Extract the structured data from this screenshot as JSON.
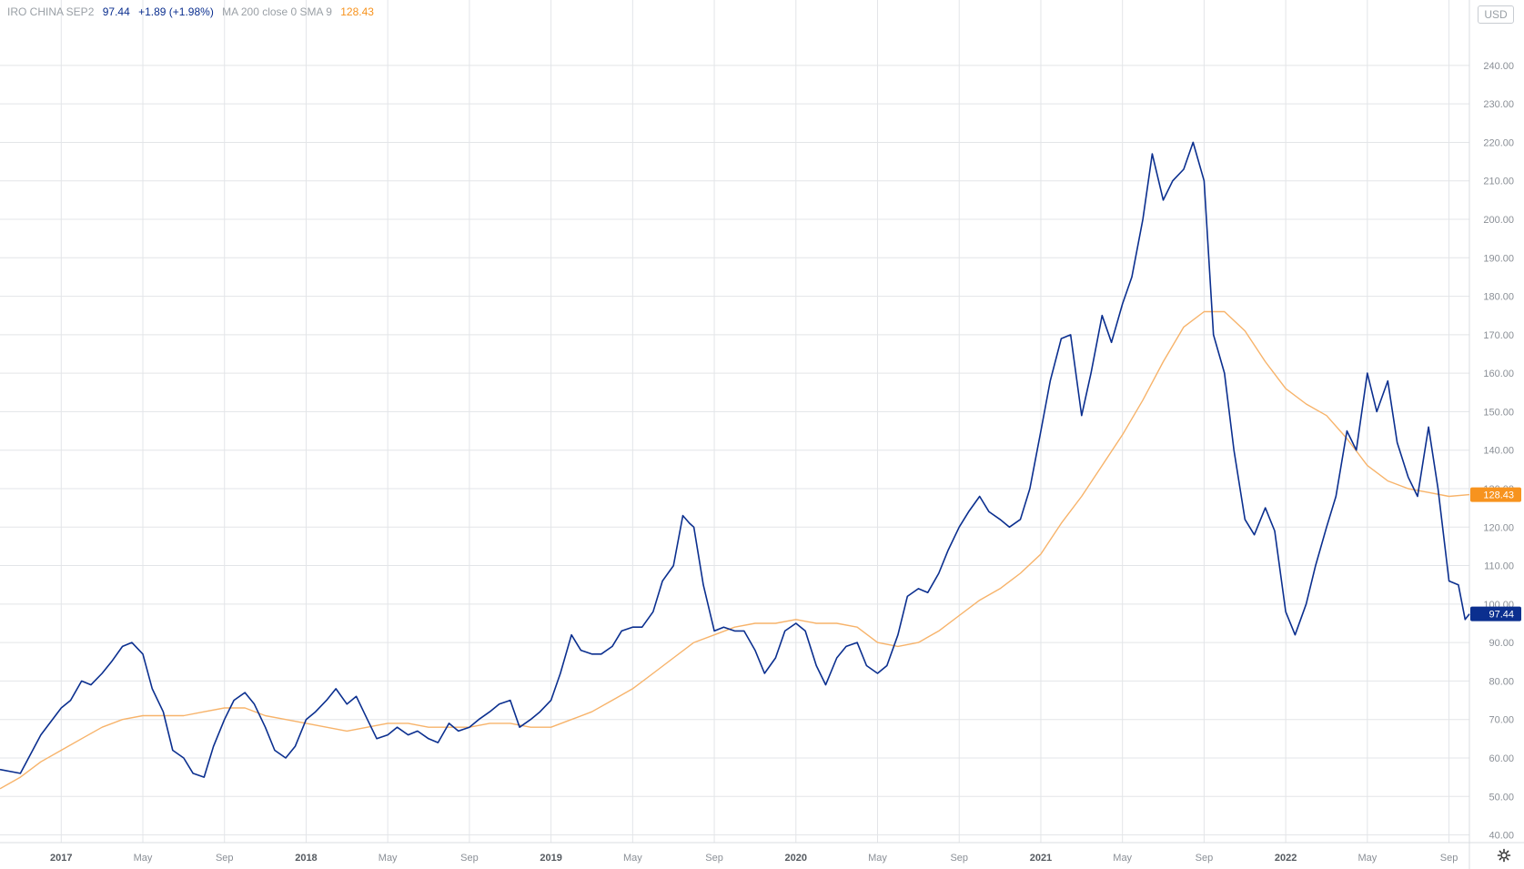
{
  "legend": {
    "symbol_name": "IRO CHINA SEP2",
    "last_value": "97.44",
    "change": "+1.89 (+1.98%)",
    "indicator_name": "MA 200 close 0 SMA 9",
    "indicator_value": "128.43"
  },
  "currency_button": "USD",
  "colors": {
    "price_line": "#0b2f8f",
    "ma_line": "#f7b36a",
    "price_badge": "#0b2f8f",
    "ma_badge": "#f7931e",
    "grid": "#e3e5e8"
  },
  "icons": {
    "settings": "gear-icon"
  },
  "chart_data": {
    "type": "line",
    "x_unit": "date (year-month)",
    "xlim": [
      "2016-10",
      "2022-10"
    ],
    "ylim": [
      38,
      257
    ],
    "grid": true,
    "y_ticks": [
      "40.00",
      "50.00",
      "60.00",
      "70.00",
      "80.00",
      "90.00",
      "100.00",
      "110.00",
      "120.00",
      "130.00",
      "140.00",
      "150.00",
      "160.00",
      "170.00",
      "180.00",
      "190.00",
      "200.00",
      "210.00",
      "220.00",
      "230.00",
      "240.00"
    ],
    "x_ticks": [
      {
        "date": "2017-01",
        "label": "2017"
      },
      {
        "date": "2017-05",
        "label": "May"
      },
      {
        "date": "2017-09",
        "label": "Sep"
      },
      {
        "date": "2018-01",
        "label": "2018"
      },
      {
        "date": "2018-05",
        "label": "May"
      },
      {
        "date": "2018-09",
        "label": "Sep"
      },
      {
        "date": "2019-01",
        "label": "2019"
      },
      {
        "date": "2019-05",
        "label": "May"
      },
      {
        "date": "2019-09",
        "label": "Sep"
      },
      {
        "date": "2020-01",
        "label": "2020"
      },
      {
        "date": "2020-05",
        "label": "May"
      },
      {
        "date": "2020-09",
        "label": "Sep"
      },
      {
        "date": "2021-01",
        "label": "2021"
      },
      {
        "date": "2021-05",
        "label": "May"
      },
      {
        "date": "2021-09",
        "label": "Sep"
      },
      {
        "date": "2022-01",
        "label": "2022"
      },
      {
        "date": "2022-05",
        "label": "May"
      },
      {
        "date": "2022-09",
        "label": "Sep"
      }
    ],
    "series": [
      {
        "name": "IRO CHINA SEP2",
        "last_label": "97.44",
        "points": [
          [
            "2016-10",
            57
          ],
          [
            "2016-11",
            56
          ],
          [
            "2016-12",
            66
          ],
          [
            "2017-01",
            73
          ],
          [
            "2017-01-15",
            75
          ],
          [
            "2017-02",
            80
          ],
          [
            "2017-02-15",
            79
          ],
          [
            "2017-03",
            82
          ],
          [
            "2017-03-15",
            85
          ],
          [
            "2017-04",
            89
          ],
          [
            "2017-04-15",
            90
          ],
          [
            "2017-05",
            87
          ],
          [
            "2017-05-15",
            78
          ],
          [
            "2017-06",
            72
          ],
          [
            "2017-06-15",
            62
          ],
          [
            "2017-07",
            60
          ],
          [
            "2017-07-15",
            56
          ],
          [
            "2017-08",
            55
          ],
          [
            "2017-08-15",
            63
          ],
          [
            "2017-09",
            70
          ],
          [
            "2017-09-15",
            75
          ],
          [
            "2017-10",
            77
          ],
          [
            "2017-10-15",
            74
          ],
          [
            "2017-11",
            68
          ],
          [
            "2017-11-15",
            62
          ],
          [
            "2017-12",
            60
          ],
          [
            "2017-12-15",
            63
          ],
          [
            "2018-01",
            70
          ],
          [
            "2018-01-15",
            72
          ],
          [
            "2018-02",
            75
          ],
          [
            "2018-02-15",
            78
          ],
          [
            "2018-03",
            74
          ],
          [
            "2018-03-15",
            76
          ],
          [
            "2018-04",
            70
          ],
          [
            "2018-04-15",
            65
          ],
          [
            "2018-05",
            66
          ],
          [
            "2018-05-15",
            68
          ],
          [
            "2018-06",
            66
          ],
          [
            "2018-06-15",
            67
          ],
          [
            "2018-07",
            65
          ],
          [
            "2018-07-15",
            64
          ],
          [
            "2018-08",
            69
          ],
          [
            "2018-08-15",
            67
          ],
          [
            "2018-09",
            68
          ],
          [
            "2018-09-15",
            70
          ],
          [
            "2018-10",
            72
          ],
          [
            "2018-10-15",
            74
          ],
          [
            "2018-11",
            75
          ],
          [
            "2018-11-15",
            68
          ],
          [
            "2018-12",
            70
          ],
          [
            "2018-12-15",
            72
          ],
          [
            "2019-01",
            75
          ],
          [
            "2019-01-15",
            82
          ],
          [
            "2019-02",
            92
          ],
          [
            "2019-02-15",
            88
          ],
          [
            "2019-03",
            87
          ],
          [
            "2019-03-15",
            87
          ],
          [
            "2019-04",
            89
          ],
          [
            "2019-04-15",
            93
          ],
          [
            "2019-05",
            94
          ],
          [
            "2019-05-15",
            94
          ],
          [
            "2019-06",
            98
          ],
          [
            "2019-06-15",
            106
          ],
          [
            "2019-07",
            110
          ],
          [
            "2019-07-15",
            123
          ],
          [
            "2019-07-25",
            121
          ],
          [
            "2019-08",
            120
          ],
          [
            "2019-08-15",
            105
          ],
          [
            "2019-09",
            93
          ],
          [
            "2019-09-15",
            94
          ],
          [
            "2019-10",
            93
          ],
          [
            "2019-10-15",
            93
          ],
          [
            "2019-11",
            88
          ],
          [
            "2019-11-15",
            82
          ],
          [
            "2019-12",
            86
          ],
          [
            "2019-12-15",
            93
          ],
          [
            "2020-01",
            95
          ],
          [
            "2020-01-15",
            93
          ],
          [
            "2020-02",
            84
          ],
          [
            "2020-02-15",
            79
          ],
          [
            "2020-03",
            86
          ],
          [
            "2020-03-15",
            89
          ],
          [
            "2020-04",
            90
          ],
          [
            "2020-04-15",
            84
          ],
          [
            "2020-05",
            82
          ],
          [
            "2020-05-15",
            84
          ],
          [
            "2020-06",
            92
          ],
          [
            "2020-06-15",
            102
          ],
          [
            "2020-07",
            104
          ],
          [
            "2020-07-15",
            103
          ],
          [
            "2020-08",
            108
          ],
          [
            "2020-08-15",
            114
          ],
          [
            "2020-09",
            120
          ],
          [
            "2020-09-15",
            124
          ],
          [
            "2020-10",
            128
          ],
          [
            "2020-10-15",
            124
          ],
          [
            "2020-11",
            122
          ],
          [
            "2020-11-15",
            120
          ],
          [
            "2020-12",
            122
          ],
          [
            "2020-12-15",
            130
          ],
          [
            "2021-01",
            145
          ],
          [
            "2021-01-15",
            158
          ],
          [
            "2021-02",
            169
          ],
          [
            "2021-02-15",
            170
          ],
          [
            "2021-03",
            149
          ],
          [
            "2021-03-15",
            160
          ],
          [
            "2021-04",
            175
          ],
          [
            "2021-04-15",
            168
          ],
          [
            "2021-05",
            178
          ],
          [
            "2021-05-15",
            185
          ],
          [
            "2021-06",
            200
          ],
          [
            "2021-06-15",
            217
          ],
          [
            "2021-07",
            205
          ],
          [
            "2021-07-15",
            210
          ],
          [
            "2021-08",
            213
          ],
          [
            "2021-08-15",
            220
          ],
          [
            "2021-09",
            210
          ],
          [
            "2021-09-15",
            170
          ],
          [
            "2021-10",
            160
          ],
          [
            "2021-10-15",
            140
          ],
          [
            "2021-11",
            122
          ],
          [
            "2021-11-15",
            118
          ],
          [
            "2021-12",
            125
          ],
          [
            "2021-12-15",
            119
          ],
          [
            "2022-01",
            98
          ],
          [
            "2022-01-15",
            92
          ],
          [
            "2022-02",
            100
          ],
          [
            "2022-02-15",
            110
          ],
          [
            "2022-03",
            120
          ],
          [
            "2022-03-15",
            128
          ],
          [
            "2022-04",
            145
          ],
          [
            "2022-04-15",
            140
          ],
          [
            "2022-05",
            160
          ],
          [
            "2022-05-15",
            150
          ],
          [
            "2022-06",
            158
          ],
          [
            "2022-06-15",
            142
          ],
          [
            "2022-07",
            133
          ],
          [
            "2022-07-15",
            128
          ],
          [
            "2022-08",
            146
          ],
          [
            "2022-08-15",
            130
          ],
          [
            "2022-09",
            106
          ],
          [
            "2022-09-15",
            105
          ],
          [
            "2022-09-25",
            96
          ],
          [
            "2022-10",
            97.44
          ]
        ]
      },
      {
        "name": "MA 200 close 0 SMA 9",
        "last_label": "128.43",
        "points": [
          [
            "2016-10",
            52
          ],
          [
            "2016-11",
            55
          ],
          [
            "2016-12",
            59
          ],
          [
            "2017-01",
            62
          ],
          [
            "2017-02",
            65
          ],
          [
            "2017-03",
            68
          ],
          [
            "2017-04",
            70
          ],
          [
            "2017-05",
            71
          ],
          [
            "2017-06",
            71
          ],
          [
            "2017-07",
            71
          ],
          [
            "2017-08",
            72
          ],
          [
            "2017-09",
            73
          ],
          [
            "2017-10",
            73
          ],
          [
            "2017-11",
            71
          ],
          [
            "2017-12",
            70
          ],
          [
            "2018-01",
            69
          ],
          [
            "2018-02",
            68
          ],
          [
            "2018-03",
            67
          ],
          [
            "2018-04",
            68
          ],
          [
            "2018-05",
            69
          ],
          [
            "2018-06",
            69
          ],
          [
            "2018-07",
            68
          ],
          [
            "2018-08",
            68
          ],
          [
            "2018-09",
            68
          ],
          [
            "2018-10",
            69
          ],
          [
            "2018-11",
            69
          ],
          [
            "2018-12",
            68
          ],
          [
            "2019-01",
            68
          ],
          [
            "2019-02",
            70
          ],
          [
            "2019-03",
            72
          ],
          [
            "2019-04",
            75
          ],
          [
            "2019-05",
            78
          ],
          [
            "2019-06",
            82
          ],
          [
            "2019-07",
            86
          ],
          [
            "2019-08",
            90
          ],
          [
            "2019-09",
            92
          ],
          [
            "2019-10",
            94
          ],
          [
            "2019-11",
            95
          ],
          [
            "2019-12",
            95
          ],
          [
            "2020-01",
            96
          ],
          [
            "2020-02",
            95
          ],
          [
            "2020-03",
            95
          ],
          [
            "2020-04",
            94
          ],
          [
            "2020-05",
            90
          ],
          [
            "2020-06",
            89
          ],
          [
            "2020-07",
            90
          ],
          [
            "2020-08",
            93
          ],
          [
            "2020-09",
            97
          ],
          [
            "2020-10",
            101
          ],
          [
            "2020-11",
            104
          ],
          [
            "2020-12",
            108
          ],
          [
            "2021-01",
            113
          ],
          [
            "2021-02",
            121
          ],
          [
            "2021-03",
            128
          ],
          [
            "2021-04",
            136
          ],
          [
            "2021-05",
            144
          ],
          [
            "2021-06",
            153
          ],
          [
            "2021-07",
            163
          ],
          [
            "2021-08",
            172
          ],
          [
            "2021-09",
            176
          ],
          [
            "2021-10",
            176
          ],
          [
            "2021-11",
            171
          ],
          [
            "2021-12",
            163
          ],
          [
            "2022-01",
            156
          ],
          [
            "2022-02",
            152
          ],
          [
            "2022-03",
            149
          ],
          [
            "2022-04",
            143
          ],
          [
            "2022-05",
            136
          ],
          [
            "2022-06",
            132
          ],
          [
            "2022-07",
            130
          ],
          [
            "2022-08",
            129
          ],
          [
            "2022-09",
            128
          ],
          [
            "2022-10",
            128.43
          ]
        ]
      }
    ]
  }
}
